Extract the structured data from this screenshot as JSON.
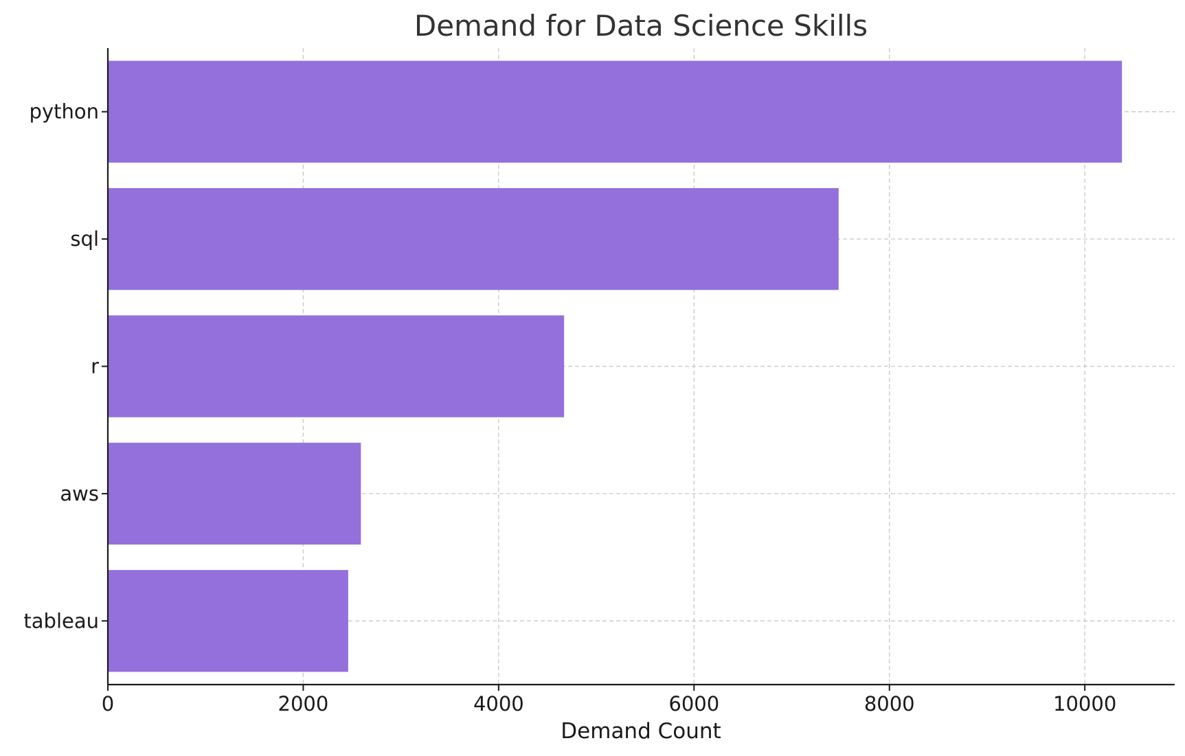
{
  "chart_data": {
    "type": "bar",
    "orientation": "horizontal",
    "title": "Demand for Data Science Skills",
    "xlabel": "Demand Count",
    "ylabel": "",
    "categories": [
      "python",
      "sql",
      "r",
      "aws",
      "tableau"
    ],
    "values": [
      10380,
      7480,
      4670,
      2590,
      2460
    ],
    "xlim": [
      0,
      10920
    ],
    "xticks": [
      0,
      2000,
      4000,
      6000,
      8000,
      10000
    ],
    "xtick_labels": [
      "0",
      "2000",
      "4000",
      "6000",
      "8000",
      "10000"
    ],
    "grid": true,
    "bar_color": "#9370DB",
    "grid_color": "#c8c8c8",
    "axis_color": "#1a1a1a"
  }
}
